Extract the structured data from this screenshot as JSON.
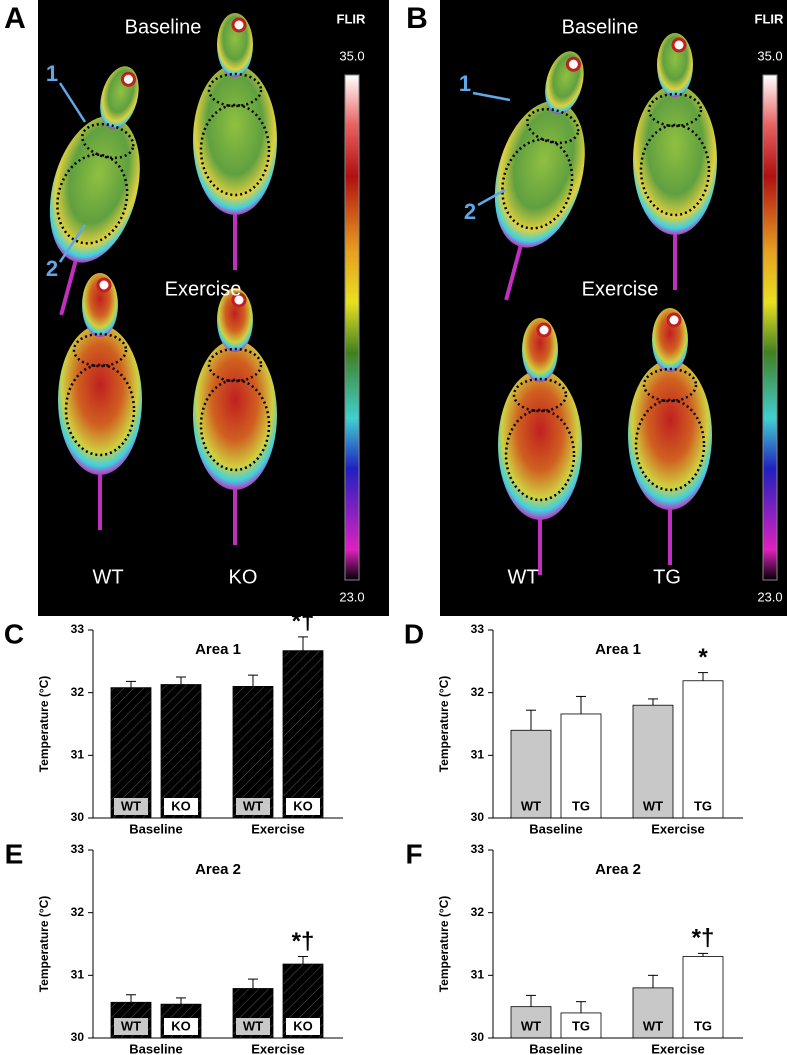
{
  "thermal": [
    {
      "letter": "A",
      "baseline": "Baseline",
      "exercise": "Exercise",
      "left": "WT",
      "right": "KO",
      "logo": "FLIR",
      "scale_max": "35.0",
      "scale_min": "23.0",
      "areas": [
        "1",
        "2"
      ]
    },
    {
      "letter": "B",
      "baseline": "Baseline",
      "exercise": "Exercise",
      "left": "WT",
      "right": "TG",
      "logo": "FLIR",
      "scale_max": "35.0",
      "scale_min": "23.0",
      "areas": [
        "1",
        "2"
      ]
    }
  ],
  "chart_data": [
    {
      "type": "bar",
      "panel": "C",
      "title": "Area 1",
      "y_label": "Temperature (°C)",
      "groups": [
        "Baseline",
        "Exercise"
      ],
      "categories": [
        "WT",
        "KO",
        "WT",
        "KO"
      ],
      "values": [
        32.08,
        32.13,
        32.1,
        32.67
      ],
      "errors": [
        0.1,
        0.12,
        0.18,
        0.22
      ],
      "value_annotations": [
        null,
        null,
        null,
        "*†"
      ],
      "colors": [
        "#c8c8c8",
        "#ffffff",
        "#c8c8c8",
        "#ffffff"
      ],
      "hatch": true,
      "ylim": [
        30,
        33
      ],
      "yticks": [
        30,
        31,
        32,
        33
      ]
    },
    {
      "type": "bar",
      "panel": "D",
      "title": "Area 1",
      "y_label": "Temperature (°C)",
      "groups": [
        "Baseline",
        "Exercise"
      ],
      "categories": [
        "WT",
        "TG",
        "WT",
        "TG"
      ],
      "values": [
        31.4,
        31.66,
        31.8,
        32.19
      ],
      "errors": [
        0.32,
        0.28,
        0.1,
        0.13
      ],
      "value_annotations": [
        null,
        null,
        null,
        "*"
      ],
      "colors": [
        "#c8c8c8",
        "#ffffff",
        "#c8c8c8",
        "#ffffff"
      ],
      "hatch": false,
      "ylim": [
        30,
        33
      ],
      "yticks": [
        30,
        31,
        32,
        33
      ]
    },
    {
      "type": "bar",
      "panel": "E",
      "title": "Area 2",
      "y_label": "Temperature (°C)",
      "groups": [
        "Baseline",
        "Exercise"
      ],
      "categories": [
        "WT",
        "KO",
        "WT",
        "KO"
      ],
      "values": [
        30.57,
        30.54,
        30.79,
        31.18
      ],
      "errors": [
        0.12,
        0.1,
        0.15,
        0.12
      ],
      "value_annotations": [
        null,
        null,
        null,
        "*†"
      ],
      "colors": [
        "#c8c8c8",
        "#ffffff",
        "#c8c8c8",
        "#ffffff"
      ],
      "hatch": true,
      "ylim": [
        30,
        33
      ],
      "yticks": [
        30,
        31,
        32,
        33
      ]
    },
    {
      "type": "bar",
      "panel": "F",
      "title": "Area 2",
      "y_label": "Temperature (°C)",
      "groups": [
        "Baseline",
        "Exercise"
      ],
      "categories": [
        "WT",
        "TG",
        "WT",
        "TG"
      ],
      "values": [
        30.5,
        30.4,
        30.8,
        31.3
      ],
      "errors": [
        0.18,
        0.18,
        0.2,
        0.05
      ],
      "value_annotations": [
        null,
        null,
        null,
        "*†"
      ],
      "colors": [
        "#c8c8c8",
        "#ffffff",
        "#c8c8c8",
        "#ffffff"
      ],
      "hatch": false,
      "ylim": [
        30,
        33
      ],
      "yticks": [
        30,
        31,
        32,
        33
      ]
    }
  ]
}
